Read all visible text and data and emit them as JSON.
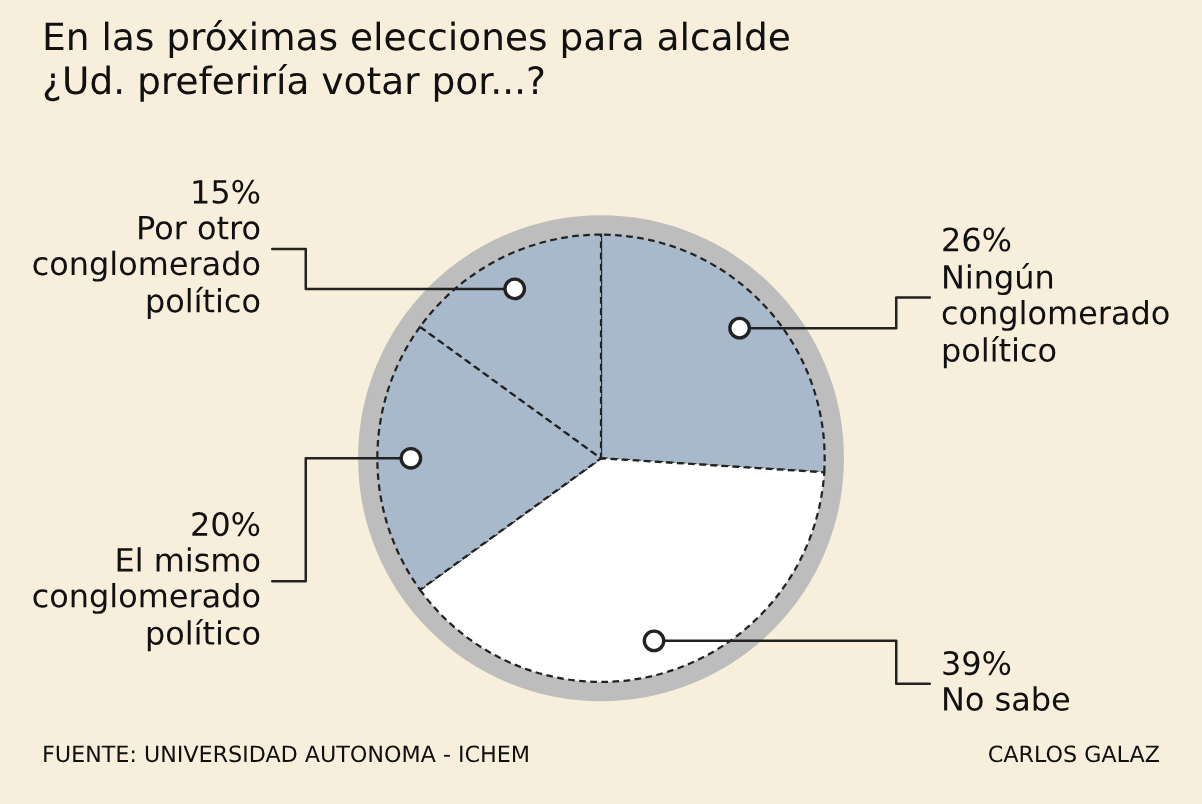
{
  "chart_data": {
    "type": "pie",
    "title": "En las próximas elecciones para alcalde\n¿Ud. preferiría votar por...?",
    "categories": [
      "Ningún\nconglomerado\npolítico",
      "No sabe",
      "El mismo\nconglomerado\npolítico",
      "Por otro\nconglomerado\npolítico"
    ],
    "values": [
      26,
      39,
      20,
      15
    ],
    "colors": [
      "#a7b9ca",
      "#ffffff",
      "#a7b9ca",
      "#a7b9ca"
    ],
    "value_labels": [
      "26%",
      "39%",
      "20%",
      "15%"
    ],
    "annotations": [
      "FUENTE: UNIVERSIDAD AUTONOMA - ICHEM",
      "CARLOS GALAZ"
    ]
  }
}
